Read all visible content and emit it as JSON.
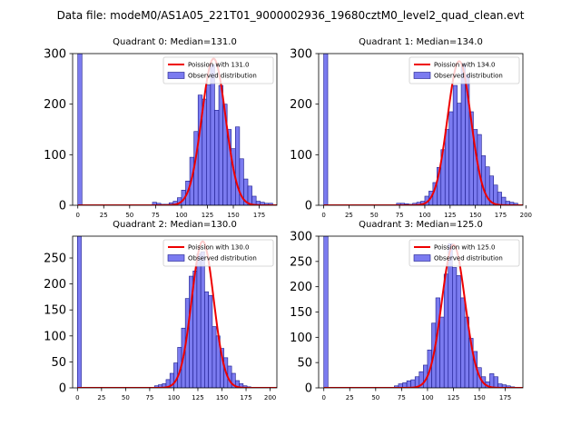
{
  "figure": {
    "title": "Data file: modeM0/AS1A05_221T01_9000002936_19680cztM0_level2_quad_clean.evt"
  },
  "colors": {
    "bar_fill": "#7b7bf0",
    "bar_edge": "#1a1a8c",
    "fit_line": "#ee0000"
  },
  "chart_data": [
    {
      "type": "bar",
      "title": "Quadrant 0: Median=131.0",
      "legend": [
        "Poission with 131.0",
        "Observed distribution"
      ],
      "legend_position": "top-right",
      "bin_width": 4,
      "xlim": [
        -5,
        192
      ],
      "ylim": [
        0,
        300
      ],
      "xticks": [
        0,
        25,
        50,
        75,
        100,
        125,
        150,
        175
      ],
      "yticks": [
        0,
        100,
        200,
        300
      ],
      "poisson_mean": 131.0,
      "poisson_peak": 290,
      "bins": [
        0,
        72,
        76,
        80,
        84,
        88,
        92,
        96,
        100,
        104,
        108,
        112,
        116,
        120,
        124,
        128,
        132,
        136,
        140,
        144,
        148,
        152,
        156,
        160,
        164,
        168,
        172,
        176,
        180,
        184
      ],
      "counts": [
        300,
        6,
        4,
        2,
        2,
        5,
        8,
        15,
        30,
        48,
        95,
        146,
        218,
        210,
        238,
        278,
        188,
        237,
        200,
        150,
        112,
        155,
        92,
        52,
        38,
        18,
        8,
        6,
        4,
        4
      ],
      "baseline": 1
    },
    {
      "type": "bar",
      "title": "Quadrant 1: Median=134.0",
      "legend": [
        "Poission with 134.0",
        "Observed distribution"
      ],
      "legend_position": "top-right",
      "bin_width": 4,
      "xlim": [
        -5,
        197
      ],
      "ylim": [
        0,
        300
      ],
      "xticks": [
        0,
        25,
        50,
        75,
        100,
        125,
        150,
        175,
        200
      ],
      "yticks": [
        0,
        100,
        200,
        300
      ],
      "poisson_mean": 134.0,
      "poisson_peak": 285,
      "bins": [
        0,
        72,
        76,
        80,
        84,
        88,
        92,
        96,
        100,
        104,
        108,
        112,
        116,
        120,
        124,
        128,
        132,
        136,
        140,
        144,
        148,
        152,
        156,
        160,
        164,
        168,
        172,
        176,
        180,
        184,
        188
      ],
      "counts": [
        300,
        4,
        4,
        3,
        2,
        4,
        6,
        8,
        18,
        28,
        45,
        75,
        110,
        150,
        185,
        237,
        202,
        280,
        258,
        185,
        150,
        140,
        98,
        76,
        58,
        40,
        26,
        16,
        8,
        6,
        4
      ],
      "baseline": 1
    },
    {
      "type": "bar",
      "title": "Quadrant 2: Median=130.0",
      "legend": [
        "Poission with 130.0",
        "Observed distribution"
      ],
      "legend_position": "top-right",
      "bin_width": 4,
      "xlim": [
        -5,
        207
      ],
      "ylim": [
        0,
        292
      ],
      "xticks": [
        0,
        25,
        50,
        75,
        100,
        125,
        150,
        175,
        200
      ],
      "yticks": [
        0,
        50,
        100,
        150,
        200,
        250
      ],
      "poisson_mean": 130.0,
      "poisson_peak": 282,
      "bins": [
        0,
        80,
        84,
        88,
        92,
        96,
        100,
        104,
        108,
        112,
        116,
        120,
        124,
        128,
        132,
        136,
        140,
        144,
        148,
        152,
        156,
        160,
        164,
        168,
        172,
        176
      ],
      "counts": [
        292,
        4,
        6,
        8,
        16,
        28,
        48,
        78,
        115,
        172,
        215,
        225,
        258,
        262,
        185,
        178,
        118,
        100,
        76,
        58,
        42,
        28,
        14,
        8,
        4,
        2
      ],
      "baseline": 1
    },
    {
      "type": "bar",
      "title": "Quadrant 3: Median=125.0",
      "legend": [
        "Poission with 125.0",
        "Observed distribution"
      ],
      "legend_position": "top-right",
      "bin_width": 4,
      "xlim": [
        -5,
        192
      ],
      "ylim": [
        0,
        300
      ],
      "xticks": [
        0,
        25,
        50,
        75,
        100,
        125,
        150,
        175
      ],
      "yticks": [
        0,
        50,
        100,
        150,
        200,
        250,
        300
      ],
      "poisson_mean": 125.0,
      "poisson_peak": 283,
      "bins": [
        0,
        68,
        72,
        76,
        80,
        84,
        88,
        92,
        96,
        100,
        104,
        108,
        112,
        116,
        120,
        124,
        128,
        132,
        136,
        140,
        144,
        148,
        152,
        156,
        160,
        164,
        168,
        172,
        176,
        180
      ],
      "counts": [
        300,
        4,
        8,
        10,
        14,
        16,
        22,
        32,
        45,
        75,
        128,
        178,
        140,
        225,
        285,
        238,
        222,
        178,
        140,
        98,
        72,
        40,
        22,
        12,
        28,
        22,
        8,
        6,
        4,
        2
      ],
      "baseline": 1
    }
  ]
}
